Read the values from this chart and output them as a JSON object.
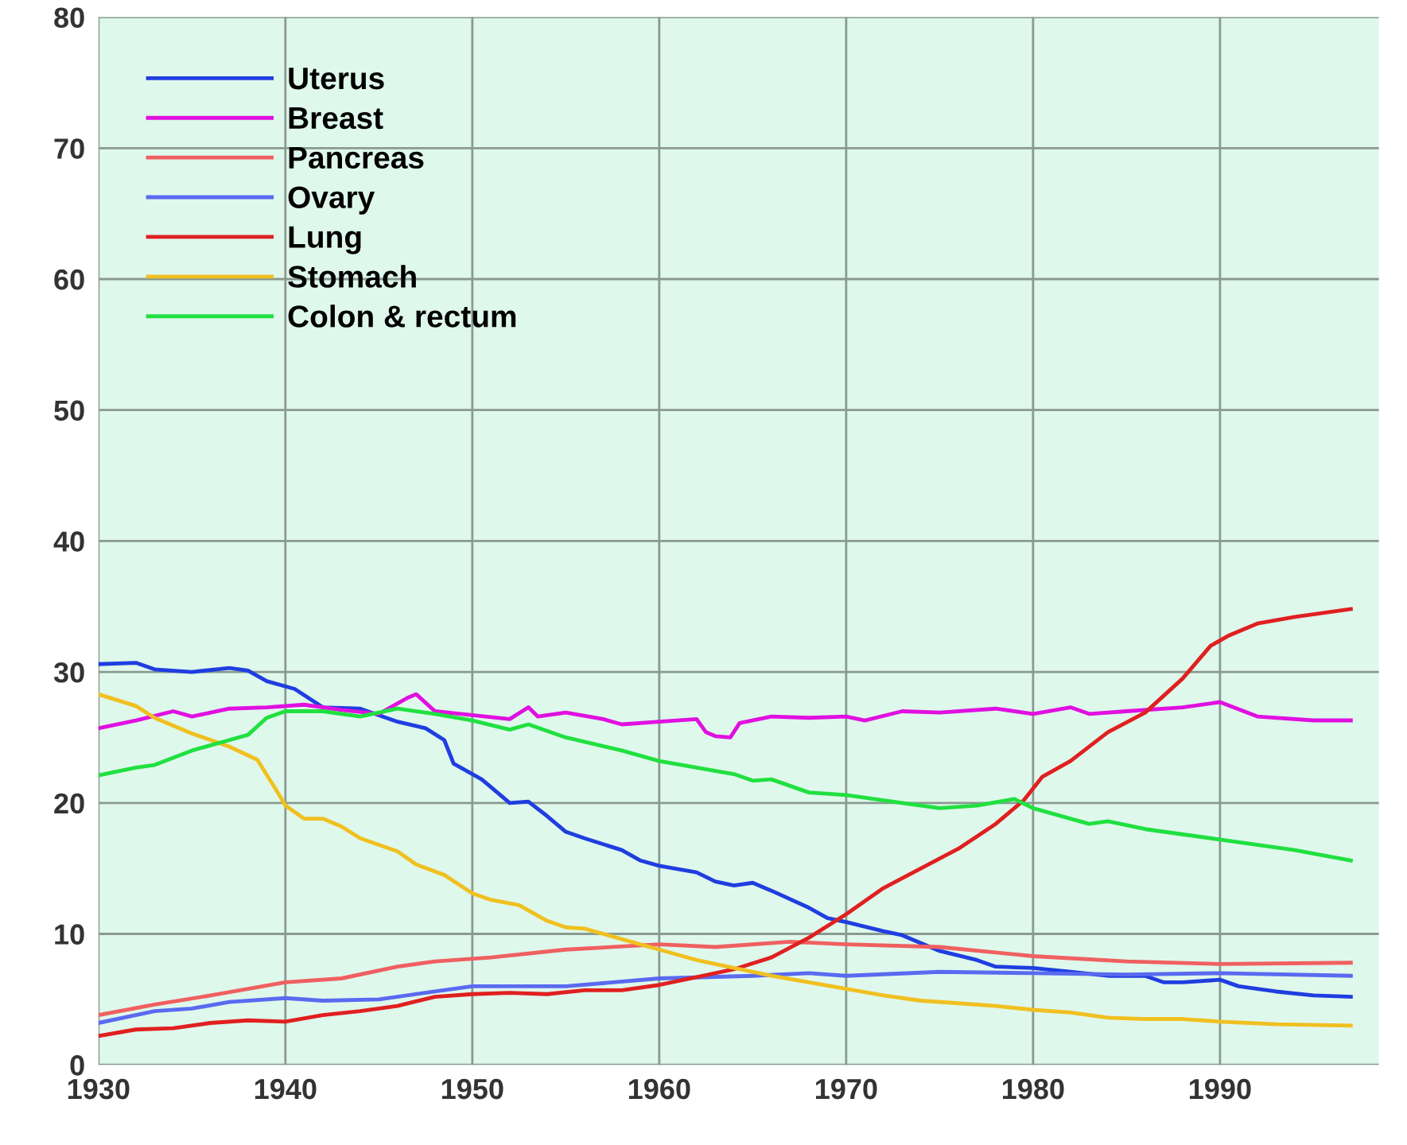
{
  "chart_data": {
    "type": "line",
    "xlim": [
      1930,
      1998.5
    ],
    "ylim": [
      0,
      80
    ],
    "xticks": [
      1930,
      1940,
      1950,
      1960,
      1970,
      1980,
      1990
    ],
    "yticks": [
      0,
      10,
      20,
      30,
      40,
      50,
      60,
      70,
      80
    ],
    "grid": true,
    "legend": "top left",
    "marker": "none",
    "line_style": "solid",
    "series": [
      {
        "name": "Uterus",
        "color": "#1f3ee0",
        "x": [
          1930,
          1932,
          1933,
          1935,
          1937,
          1938,
          1939,
          1940.5,
          1942,
          1944,
          1946,
          1947.5,
          1948.5,
          1949,
          1950.5,
          1951.5,
          1952,
          1953,
          1954,
          1955,
          1956,
          1958,
          1959,
          1960,
          1962,
          1963,
          1964,
          1965,
          1966,
          1968,
          1969,
          1970,
          1972,
          1973,
          1975,
          1977,
          1978,
          1980,
          1982,
          1984,
          1986,
          1987,
          1988,
          1990,
          1991,
          1993,
          1995,
          1997
        ],
        "values": [
          30.6,
          30.7,
          30.2,
          30.0,
          30.3,
          30.1,
          29.3,
          28.7,
          27.3,
          27.2,
          26.2,
          25.7,
          24.8,
          23.0,
          21.8,
          20.6,
          20.0,
          20.1,
          19.0,
          17.8,
          17.3,
          16.4,
          15.6,
          15.2,
          14.7,
          14.0,
          13.7,
          13.9,
          13.3,
          12.0,
          11.2,
          10.9,
          10.2,
          9.9,
          8.7,
          8.0,
          7.5,
          7.4,
          7.1,
          6.8,
          6.8,
          6.3,
          6.3,
          6.5,
          6.0,
          5.6,
          5.3,
          5.2
        ]
      },
      {
        "name": "Breast",
        "color": "#e010e0",
        "x": [
          1930,
          1932,
          1934,
          1935,
          1937,
          1939,
          1941,
          1943,
          1945,
          1946.5,
          1947,
          1948,
          1950,
          1952,
          1953,
          1953.5,
          1955,
          1957,
          1958,
          1960,
          1962,
          1962.5,
          1963,
          1963.8,
          1964.3,
          1966,
          1968,
          1970,
          1971,
          1973,
          1975,
          1978,
          1980,
          1982,
          1983,
          1985,
          1988,
          1990,
          1992,
          1995,
          1997
        ],
        "values": [
          25.7,
          26.3,
          27.0,
          26.6,
          27.2,
          27.3,
          27.5,
          27.1,
          26.8,
          28.0,
          28.3,
          27.0,
          26.7,
          26.4,
          27.3,
          26.6,
          26.9,
          26.4,
          26.0,
          26.2,
          26.4,
          25.4,
          25.1,
          25.0,
          26.1,
          26.6,
          26.5,
          26.6,
          26.3,
          27.0,
          26.9,
          27.2,
          26.8,
          27.3,
          26.8,
          27.0,
          27.3,
          27.7,
          26.6,
          26.3,
          26.3
        ]
      },
      {
        "name": "Pancreas",
        "color": "#f06060",
        "x": [
          1930,
          1933,
          1936,
          1940,
          1943,
          1946,
          1948,
          1951,
          1955,
          1960,
          1963,
          1967,
          1970,
          1975,
          1980,
          1985,
          1990,
          1997
        ],
        "values": [
          3.8,
          4.6,
          5.3,
          6.3,
          6.6,
          7.5,
          7.9,
          8.2,
          8.8,
          9.2,
          9.0,
          9.4,
          9.2,
          9.0,
          8.3,
          7.9,
          7.7,
          7.8
        ]
      },
      {
        "name": "Ovary",
        "color": "#5a6af0",
        "x": [
          1930,
          1933,
          1935,
          1937,
          1940,
          1942,
          1945,
          1948,
          1950,
          1955,
          1960,
          1965,
          1968,
          1970,
          1975,
          1980,
          1985,
          1990,
          1997
        ],
        "values": [
          3.2,
          4.1,
          4.3,
          4.8,
          5.1,
          4.9,
          5.0,
          5.6,
          6.0,
          6.0,
          6.6,
          6.8,
          7.0,
          6.8,
          7.1,
          7.0,
          6.9,
          7.0,
          6.8
        ]
      },
      {
        "name": "Lung",
        "color": "#e02020",
        "x": [
          1930,
          1932,
          1934,
          1936,
          1938,
          1940,
          1942,
          1944,
          1946,
          1948,
          1950,
          1952,
          1954,
          1956,
          1958,
          1960,
          1962,
          1964,
          1966,
          1968,
          1970,
          1972,
          1974,
          1976,
          1978,
          1979.5,
          1980.5,
          1982,
          1984,
          1986,
          1988,
          1989.5,
          1990.5,
          1992,
          1994,
          1997
        ],
        "values": [
          2.2,
          2.7,
          2.8,
          3.2,
          3.4,
          3.3,
          3.8,
          4.1,
          4.5,
          5.2,
          5.4,
          5.5,
          5.4,
          5.7,
          5.7,
          6.1,
          6.7,
          7.3,
          8.2,
          9.7,
          11.5,
          13.5,
          15.0,
          16.5,
          18.4,
          20.2,
          22.0,
          23.2,
          25.4,
          26.9,
          29.5,
          32.0,
          32.8,
          33.7,
          34.2,
          34.8
        ]
      },
      {
        "name": "Stomach",
        "color": "#f0c020",
        "x": [
          1930,
          1932,
          1933,
          1935,
          1937,
          1938.5,
          1939.5,
          1940,
          1941,
          1942,
          1943,
          1944,
          1946,
          1947,
          1948.5,
          1950,
          1951,
          1952.5,
          1954,
          1955,
          1956,
          1958,
          1960,
          1962,
          1964,
          1966,
          1968,
          1970,
          1972,
          1974,
          1976,
          1978,
          1980,
          1982,
          1984,
          1986,
          1988,
          1990,
          1993,
          1997
        ],
        "values": [
          28.3,
          27.4,
          26.5,
          25.3,
          24.3,
          23.3,
          21.0,
          19.8,
          18.8,
          18.8,
          18.2,
          17.3,
          16.3,
          15.3,
          14.5,
          13.1,
          12.6,
          12.2,
          11.0,
          10.5,
          10.4,
          9.6,
          8.8,
          8.0,
          7.4,
          6.8,
          6.3,
          5.8,
          5.3,
          4.9,
          4.7,
          4.5,
          4.2,
          4.0,
          3.6,
          3.5,
          3.5,
          3.3,
          3.1,
          3.0
        ]
      },
      {
        "name": "Colon & rectum",
        "color": "#20e040",
        "x": [
          1930,
          1932,
          1933,
          1935,
          1937,
          1938,
          1939,
          1940,
          1942,
          1944,
          1946,
          1948,
          1950,
          1952,
          1953,
          1955,
          1958,
          1960,
          1962,
          1964,
          1965,
          1966,
          1968,
          1970,
          1973,
          1975,
          1977,
          1979,
          1980,
          1982,
          1983,
          1984,
          1986,
          1990,
          1994,
          1997
        ],
        "values": [
          22.1,
          22.7,
          22.9,
          24.0,
          24.8,
          25.2,
          26.5,
          27.0,
          27.0,
          26.6,
          27.2,
          26.8,
          26.3,
          25.6,
          26.0,
          25.0,
          24.0,
          23.2,
          22.7,
          22.2,
          21.7,
          21.8,
          20.8,
          20.6,
          20.0,
          19.6,
          19.8,
          20.3,
          19.6,
          18.8,
          18.4,
          18.6,
          18.0,
          17.2,
          16.4,
          15.6
        ]
      }
    ]
  }
}
